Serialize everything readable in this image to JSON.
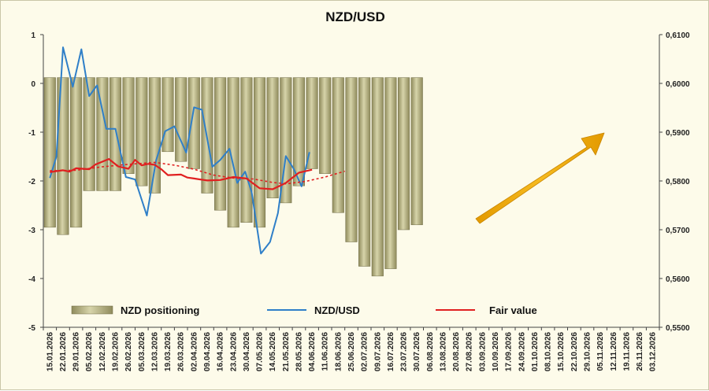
{
  "chart_data": {
    "type": "bar+line",
    "title": "NZD/USD",
    "y_left": {
      "ticks": [
        "1",
        "0",
        "-1",
        "-2",
        "-3",
        "-4",
        "-5"
      ],
      "ylim": [
        -5,
        1
      ]
    },
    "y_right": {
      "ticks": [
        "0,6100",
        "0,6000",
        "0,5900",
        "0,5800",
        "0,5700",
        "0,5600",
        "0,5500"
      ],
      "ylim": [
        0.55,
        0.61
      ]
    },
    "x_labels": [
      "15.01.2026",
      "22.01.2026",
      "29.01.2026",
      "05.02.2026",
      "12.02.2026",
      "19.02.2026",
      "26.02.2026",
      "05.03.2026",
      "12.03.2026",
      "19.03.2026",
      "26.03.2026",
      "02.04.2026",
      "09.04.2026",
      "16.04.2026",
      "23.04.2026",
      "30.04.2026",
      "07.05.2026",
      "14.05.2026",
      "21.05.2026",
      "28.05.2026",
      "04.06.2026",
      "11.06.2026",
      "18.06.2026",
      "25.06.2026",
      "02.07.2026",
      "09.07.2026",
      "16.07.2026",
      "23.07.2026",
      "30.07.2026",
      "06.08.2026",
      "13.08.2026",
      "20.08.2026",
      "27.08.2026",
      "03.09.2026",
      "10.09.2026",
      "17.09.2026",
      "24.09.2026",
      "01.10.2026",
      "08.10.2026",
      "15.10.2026",
      "22.10.2026",
      "29.10.2026",
      "05.11.2026",
      "12.11.2026",
      "19.11.2026",
      "26.11.2026",
      "03.12.2026"
    ],
    "legend": {
      "position": "bottom-left",
      "entries": [
        "NZD positioning",
        "NZD/USD",
        "Fair value"
      ]
    },
    "grid": false,
    "series": [
      {
        "name": "NZD positioning",
        "kind": "bar",
        "axis": "left",
        "color": "#bdb98a",
        "values": [
          -2.95,
          -3.1,
          -2.95,
          -2.2,
          -2.2,
          -2.2,
          -1.85,
          -2.1,
          -2.25,
          -1.4,
          -1.6,
          -1.75,
          -2.25,
          -2.6,
          -2.95,
          -2.85,
          -2.95,
          -2.35,
          -2.45,
          -2.1,
          -1.75,
          -1.85,
          -2.65,
          -3.25,
          -3.75,
          -3.95,
          -3.8,
          -3.0,
          -2.9
        ]
      },
      {
        "name": "NZD/USD",
        "kind": "line",
        "axis": "right",
        "color": "#2f7fc8",
        "points": [
          [
            0,
            0.5806
          ],
          [
            0.5,
            0.585
          ],
          [
            1,
            0.6074
          ],
          [
            1.75,
            0.5993
          ],
          [
            2.4,
            0.607
          ],
          [
            3,
            0.5974
          ],
          [
            3.6,
            0.5996
          ],
          [
            4.3,
            0.5907
          ],
          [
            5,
            0.5907
          ],
          [
            5.8,
            0.5808
          ],
          [
            6.5,
            0.5803
          ],
          [
            7.4,
            0.5729
          ],
          [
            8.1,
            0.5842
          ],
          [
            8.8,
            0.5902
          ],
          [
            9.5,
            0.5912
          ],
          [
            10.4,
            0.5858
          ],
          [
            11,
            0.5951
          ],
          [
            11.6,
            0.5946
          ],
          [
            12.4,
            0.5829
          ],
          [
            13,
            0.5843
          ],
          [
            13.7,
            0.5866
          ],
          [
            14.3,
            0.5796
          ],
          [
            14.9,
            0.5819
          ],
          [
            15.4,
            0.5777
          ],
          [
            16.1,
            0.5651
          ],
          [
            16.8,
            0.5675
          ],
          [
            17.4,
            0.5734
          ],
          [
            18,
            0.5851
          ],
          [
            18.6,
            0.5825
          ],
          [
            19.2,
            0.5789
          ],
          [
            19.8,
            0.5859
          ]
        ]
      },
      {
        "name": "Fair value",
        "kind": "line",
        "axis": "right",
        "color": "#e02020",
        "points": [
          [
            0,
            0.5818
          ],
          [
            1,
            0.5822
          ],
          [
            1.5,
            0.5819
          ],
          [
            2,
            0.5826
          ],
          [
            3,
            0.5824
          ],
          [
            3.5,
            0.5834
          ],
          [
            4.5,
            0.5845
          ],
          [
            5.2,
            0.583
          ],
          [
            6,
            0.5825
          ],
          [
            6.5,
            0.5843
          ],
          [
            7,
            0.5832
          ],
          [
            7.5,
            0.5835
          ],
          [
            8,
            0.5833
          ],
          [
            8.5,
            0.5824
          ],
          [
            9,
            0.5812
          ],
          [
            10,
            0.5813
          ],
          [
            10.5,
            0.5807
          ],
          [
            11,
            0.5805
          ],
          [
            12,
            0.5801
          ],
          [
            13,
            0.5802
          ],
          [
            14,
            0.5808
          ],
          [
            15,
            0.5805
          ],
          [
            16,
            0.5785
          ],
          [
            17,
            0.5783
          ],
          [
            18,
            0.5796
          ],
          [
            19,
            0.5817
          ],
          [
            20,
            0.5823
          ]
        ]
      },
      {
        "name": "Fair value (projection)",
        "kind": "line",
        "axis": "right",
        "style": "dashed",
        "color": "#e02020",
        "points": [
          [
            0,
            0.5821
          ],
          [
            2,
            0.5822
          ],
          [
            4,
            0.5829
          ],
          [
            6,
            0.5834
          ],
          [
            8,
            0.5838
          ],
          [
            9.6,
            0.5832
          ],
          [
            11,
            0.5824
          ],
          [
            12.5,
            0.5812
          ],
          [
            14,
            0.5806
          ],
          [
            15.5,
            0.5804
          ],
          [
            17,
            0.5797
          ],
          [
            18,
            0.5794
          ],
          [
            19.5,
            0.5799
          ],
          [
            21,
            0.5808
          ],
          [
            22.5,
            0.582
          ]
        ]
      }
    ],
    "annotation": {
      "kind": "arrow",
      "color": "#f0a800",
      "description": "upward trend arrow"
    }
  }
}
